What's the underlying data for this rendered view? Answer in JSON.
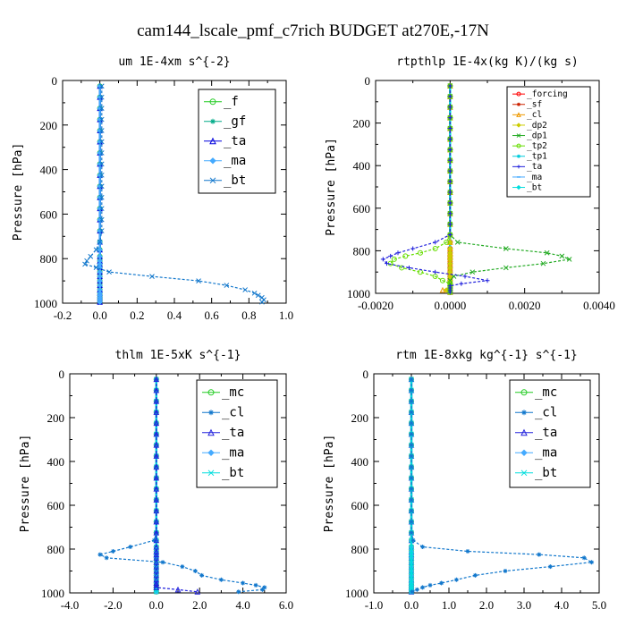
{
  "figure_title": "cam144_lscale_pmf_c7rich  BUDGET at270E,-17N",
  "chart_data": [
    {
      "type": "line",
      "title": "um  1E-4xm s^{-2}",
      "ylabel": "Pressure [hPa]",
      "xlim": [
        -0.2,
        1.0
      ],
      "ylim": [
        1000,
        0
      ],
      "xticks": [
        "-0.2",
        "0.0",
        "0.2",
        "0.4",
        "0.6",
        "0.8",
        "1.0"
      ],
      "yticks": [
        "0",
        "200",
        "400",
        "600",
        "800",
        "1000"
      ],
      "legend_position": "top-right",
      "legend": [
        "_f",
        "_gf",
        "_ta",
        "_ma",
        "_bt"
      ],
      "pressure": [
        25,
        75,
        125,
        175,
        225,
        275,
        325,
        375,
        425,
        475,
        525,
        575,
        625,
        675,
        725,
        760,
        790,
        810,
        825,
        840,
        860,
        880,
        900,
        920,
        940,
        955,
        965,
        975,
        985,
        995
      ],
      "series": [
        {
          "name": "_f",
          "color": "#22cc22",
          "values": [
            0,
            0,
            0,
            0,
            0,
            0,
            0,
            0,
            0,
            0,
            0,
            0,
            0,
            0,
            0,
            0,
            0,
            0,
            0,
            0,
            0,
            0,
            0,
            0,
            0,
            0,
            0,
            0,
            0,
            0
          ]
        },
        {
          "name": "_gf",
          "color": "#00aa88",
          "values": [
            0,
            0,
            0,
            0,
            0,
            0,
            0,
            0,
            0,
            0,
            0,
            0,
            0,
            0,
            0,
            0,
            0,
            0,
            0,
            0,
            0,
            0,
            0,
            0,
            0,
            0,
            0,
            0,
            0,
            0
          ]
        },
        {
          "name": "_ta",
          "color": "#0000dd",
          "values": [
            0,
            0,
            0,
            0,
            0,
            0,
            0,
            0,
            0,
            0,
            0,
            0,
            0,
            0,
            0,
            0,
            0,
            0,
            0,
            0,
            0,
            0,
            0,
            0,
            0,
            0,
            0,
            0,
            0,
            0
          ]
        },
        {
          "name": "_ma",
          "color": "#44aaff",
          "values": [
            0,
            0,
            0,
            0,
            0,
            0,
            0,
            0,
            0,
            0,
            0,
            0,
            0,
            0,
            0,
            0,
            0,
            0,
            0,
            0,
            0,
            0,
            0,
            0,
            0,
            0,
            0,
            0,
            0,
            0
          ]
        },
        {
          "name": "_bt",
          "color": "#1177cc",
          "values": [
            0.01,
            0.01,
            0.01,
            0.01,
            0.01,
            0.01,
            0.01,
            0.01,
            0.01,
            0.01,
            0.01,
            0.01,
            0.01,
            0.01,
            0.0,
            -0.02,
            -0.05,
            -0.07,
            -0.08,
            -0.02,
            0.05,
            0.28,
            0.53,
            0.68,
            0.78,
            0.83,
            0.85,
            0.87,
            0.88,
            0.87
          ]
        }
      ]
    },
    {
      "type": "line",
      "title": "rtpthlp  1E-4x(kg K)/(kg s)",
      "ylabel": "Pressure [hPa]",
      "xlim": [
        -0.002,
        0.004
      ],
      "ylim": [
        1000,
        0
      ],
      "xticks": [
        "-0.0020",
        "0.0000",
        "0.0020",
        "0.0040"
      ],
      "yticks": [
        "0",
        "200",
        "400",
        "600",
        "800",
        "1000"
      ],
      "legend_position": "top-right",
      "legend": [
        "_forcing",
        "_sf",
        "_cl",
        "_dp2",
        "_dp1",
        "_tp2",
        "_tp1",
        "_ta",
        "_ma",
        "_bt"
      ],
      "pressure": [
        25,
        75,
        125,
        175,
        225,
        275,
        325,
        375,
        425,
        475,
        525,
        575,
        625,
        675,
        725,
        760,
        790,
        810,
        825,
        840,
        860,
        880,
        900,
        920,
        940,
        955,
        965,
        975,
        985,
        995
      ],
      "series": [
        {
          "name": "_forcing",
          "color": "#ff0000",
          "values": [
            0,
            0,
            0,
            0,
            0,
            0,
            0,
            0,
            0,
            0,
            0,
            0,
            0,
            0,
            0,
            0,
            0,
            0,
            0,
            0,
            0,
            0,
            0,
            0,
            0,
            0,
            0,
            0,
            0,
            0
          ]
        },
        {
          "name": "_sf",
          "color": "#cc2200",
          "values": [
            0,
            0,
            0,
            0,
            0,
            0,
            0,
            0,
            0,
            0,
            0,
            0,
            0,
            0,
            0,
            0,
            0,
            0,
            0,
            0,
            0,
            0,
            0,
            0,
            0,
            0,
            0,
            0,
            0,
            0
          ]
        },
        {
          "name": "_cl",
          "color": "#ee9900",
          "values": [
            0,
            0,
            0,
            0,
            0,
            0,
            0,
            0,
            0,
            0,
            0,
            0,
            0,
            0,
            0,
            0,
            0,
            0,
            0,
            0,
            0,
            0,
            0,
            0,
            0,
            0,
            0,
            0,
            -0.0002,
            0
          ]
        },
        {
          "name": "_dp2",
          "color": "#cccc00",
          "values": [
            0,
            0,
            0,
            0,
            0,
            0,
            0,
            0,
            0,
            0,
            0,
            0,
            0,
            0,
            0,
            0,
            0,
            0,
            0,
            0,
            0,
            0,
            0,
            0,
            0,
            0,
            0,
            0,
            -0.0001,
            0
          ]
        },
        {
          "name": "_dp1",
          "color": "#22aa22",
          "values": [
            0,
            0,
            0,
            0,
            0,
            0,
            0,
            0,
            0,
            0,
            0,
            0,
            0,
            0,
            0,
            0.0002,
            0.0015,
            0.0026,
            0.003,
            0.0032,
            0.0025,
            0.0015,
            0.0006,
            0.0001,
            0,
            0,
            0,
            0,
            0,
            0
          ]
        },
        {
          "name": "_tp2",
          "color": "#66dd00",
          "values": [
            0,
            0,
            0,
            0,
            0,
            0,
            0,
            0,
            0,
            0,
            0,
            0,
            0,
            0,
            0,
            -0.0001,
            -0.0004,
            -0.0008,
            -0.0012,
            -0.0015,
            -0.0016,
            -0.0013,
            -0.0008,
            -0.0004,
            -0.0002,
            0,
            0,
            0,
            0,
            0
          ]
        },
        {
          "name": "_tp1",
          "color": "#00ccdd",
          "values": [
            0,
            0,
            0,
            0,
            0,
            0,
            0,
            0,
            0,
            0,
            0,
            0,
            0,
            0,
            0,
            0,
            0,
            0,
            0,
            0,
            0,
            0,
            0,
            0,
            0,
            0,
            0,
            0,
            0,
            0
          ]
        },
        {
          "name": "_ta",
          "color": "#2222dd",
          "values": [
            0,
            0,
            0,
            0,
            0,
            0,
            0,
            0,
            0,
            0,
            0,
            0,
            0,
            0,
            0,
            -0.0004,
            -0.001,
            -0.0014,
            -0.0016,
            -0.0018,
            -0.0017,
            -0.0011,
            -0.0004,
            0.0004,
            0.001,
            0.0003,
            0,
            0,
            0,
            0
          ]
        },
        {
          "name": "_ma",
          "color": "#44aaff",
          "values": [
            0,
            0,
            0,
            0,
            0,
            0,
            0,
            0,
            0,
            0,
            0,
            0,
            0,
            0,
            0,
            0,
            0,
            0,
            0,
            0,
            0,
            0,
            0,
            0,
            0,
            0,
            0,
            0,
            0,
            0
          ]
        },
        {
          "name": "_bt",
          "color": "#00dddd",
          "values": [
            0,
            0,
            0,
            0,
            0,
            0,
            0,
            0,
            0,
            0,
            0,
            0,
            0,
            0,
            0,
            0,
            0,
            0,
            0,
            0,
            0,
            0,
            0,
            0,
            0,
            0,
            0,
            0,
            0,
            0
          ]
        }
      ]
    },
    {
      "type": "line",
      "title": "thlm  1E-5xK s^{-1}",
      "ylabel": "Pressure [hPa]",
      "xlim": [
        -4.0,
        6.0
      ],
      "ylim": [
        1000,
        0
      ],
      "xticks": [
        "-4.0",
        "-2.0",
        "0.0",
        "2.0",
        "4.0",
        "6.0"
      ],
      "yticks": [
        "0",
        "200",
        "400",
        "600",
        "800",
        "1000"
      ],
      "legend_position": "top-right",
      "legend": [
        "_mc",
        "_cl",
        "_ta",
        "_ma",
        "_bt"
      ],
      "pressure": [
        25,
        75,
        125,
        175,
        225,
        275,
        325,
        375,
        425,
        475,
        525,
        575,
        625,
        675,
        725,
        760,
        790,
        810,
        825,
        840,
        860,
        880,
        900,
        920,
        940,
        955,
        965,
        975,
        985,
        995
      ],
      "series": [
        {
          "name": "_mc",
          "color": "#22cc22",
          "values": [
            0,
            0,
            0,
            0,
            0,
            0,
            0,
            0,
            0,
            0,
            0,
            0,
            0,
            0,
            0,
            0,
            0,
            0,
            0,
            0,
            0,
            0,
            0,
            0,
            0,
            0,
            0,
            0,
            0,
            0
          ]
        },
        {
          "name": "_cl",
          "color": "#1177cc",
          "values": [
            0,
            0,
            0,
            0,
            0,
            0,
            0,
            0,
            0,
            0,
            0,
            0,
            0,
            0,
            0,
            -0.1,
            -1.2,
            -2.0,
            -2.6,
            -2.3,
            0.3,
            1.2,
            1.8,
            2.1,
            3.0,
            4.0,
            4.6,
            5.0,
            4.9,
            3.8
          ]
        },
        {
          "name": "_ta",
          "color": "#2222dd",
          "values": [
            0,
            0,
            0,
            0,
            0,
            0,
            0,
            0,
            0,
            0,
            0,
            0,
            0,
            0,
            0,
            0,
            0,
            0,
            0,
            0,
            0,
            0,
            0,
            0,
            0,
            0,
            0,
            0,
            1.0,
            1.9
          ]
        },
        {
          "name": "_ma",
          "color": "#44aaff",
          "values": [
            0,
            0,
            0,
            0,
            0,
            0,
            0,
            0,
            0,
            0,
            0,
            0,
            0,
            0,
            0,
            0,
            0,
            0,
            0,
            0,
            0,
            0,
            0,
            0,
            0,
            0,
            0,
            0,
            0,
            0
          ]
        },
        {
          "name": "_bt",
          "color": "#00dddd",
          "values": [
            0,
            0,
            0,
            0,
            0,
            0,
            0,
            0,
            0,
            0,
            0,
            0,
            0,
            0,
            0,
            0,
            0,
            0,
            0,
            0,
            0,
            0,
            0,
            0,
            0,
            0,
            0,
            0,
            0,
            0
          ]
        }
      ]
    },
    {
      "type": "line",
      "title": "rtm  1E-8xkg kg^{-1} s^{-1}",
      "ylabel": "Pressure [hPa]",
      "xlim": [
        -1.0,
        5.0
      ],
      "ylim": [
        1000,
        0
      ],
      "xticks": [
        "-1.0",
        "0.0",
        "1.0",
        "2.0",
        "3.0",
        "4.0",
        "5.0"
      ],
      "yticks": [
        "0",
        "200",
        "400",
        "600",
        "800",
        "1000"
      ],
      "legend_position": "top-right",
      "legend": [
        "_mc",
        "_cl",
        "_ta",
        "_ma",
        "_bt"
      ],
      "pressure": [
        25,
        75,
        125,
        175,
        225,
        275,
        325,
        375,
        425,
        475,
        525,
        575,
        625,
        675,
        725,
        760,
        790,
        810,
        825,
        840,
        860,
        880,
        900,
        920,
        940,
        955,
        965,
        975,
        985,
        995
      ],
      "series": [
        {
          "name": "_mc",
          "color": "#22cc22",
          "values": [
            0,
            0,
            0,
            0,
            0,
            0,
            0,
            0,
            0,
            0,
            0,
            0,
            0,
            0,
            0,
            0,
            0,
            0,
            0,
            0,
            0,
            0,
            0,
            0,
            0,
            0,
            0,
            0,
            0,
            0
          ]
        },
        {
          "name": "_cl",
          "color": "#1177cc",
          "values": [
            0,
            0,
            0,
            0,
            0,
            0,
            0,
            0,
            0,
            0,
            0,
            0,
            0,
            0,
            0,
            0.05,
            0.3,
            1.5,
            3.4,
            4.6,
            4.8,
            3.7,
            2.5,
            1.7,
            1.2,
            0.8,
            0.5,
            0.3,
            0.15,
            0.02
          ]
        },
        {
          "name": "_ta",
          "color": "#2222dd",
          "values": [
            0,
            0,
            0,
            0,
            0,
            0,
            0,
            0,
            0,
            0,
            0,
            0,
            0,
            0,
            0,
            0,
            0,
            0,
            0,
            0,
            0,
            0,
            0,
            0,
            0,
            0,
            0,
            0,
            0,
            0
          ]
        },
        {
          "name": "_ma",
          "color": "#44aaff",
          "values": [
            0,
            0,
            0,
            0,
            0,
            0,
            0,
            0,
            0,
            0,
            0,
            0,
            0,
            0,
            0,
            0,
            0,
            0,
            0,
            0,
            0,
            0,
            0,
            0,
            0,
            0,
            0,
            0,
            0,
            0
          ]
        },
        {
          "name": "_bt",
          "color": "#00dddd",
          "values": [
            0,
            0,
            0,
            0,
            0,
            0,
            0,
            0,
            0,
            0,
            0,
            0,
            0,
            0,
            0,
            0,
            0,
            0,
            0,
            0,
            0,
            0,
            0,
            0,
            0,
            0,
            0,
            0,
            0,
            0
          ]
        }
      ]
    }
  ]
}
